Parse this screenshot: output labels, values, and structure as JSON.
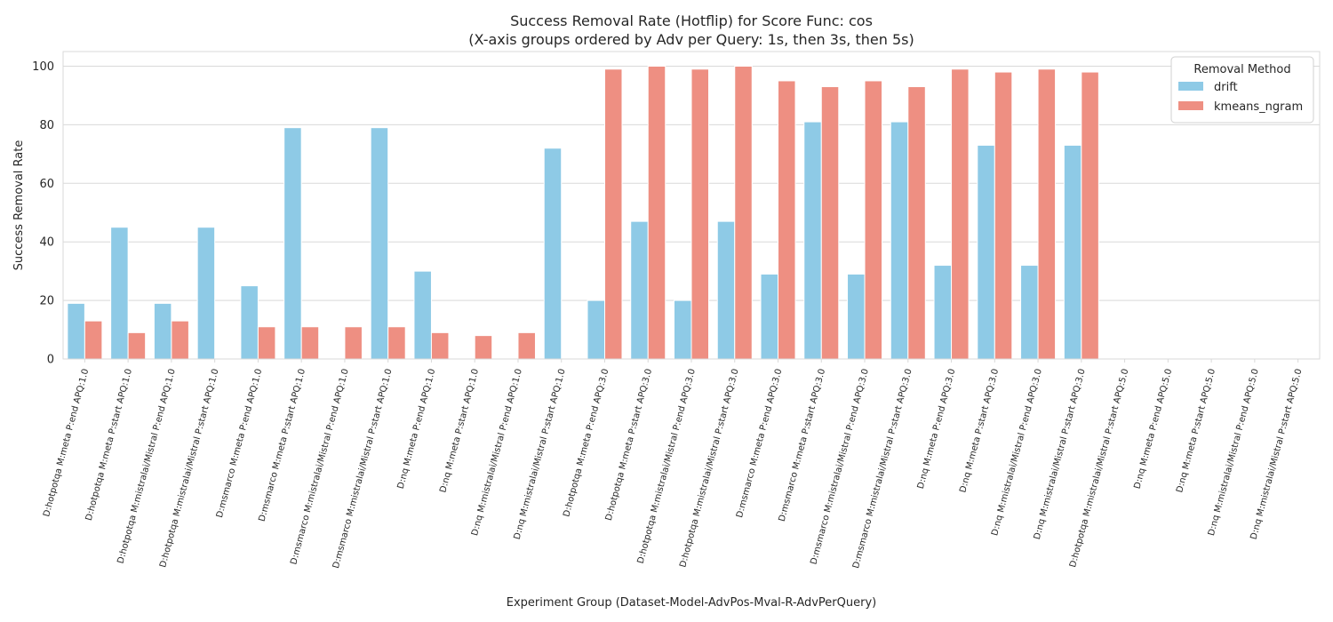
{
  "chart_data": {
    "type": "bar",
    "title": "Success Removal Rate (Hotflip) for Score Func: cos",
    "subtitle": "(X-axis groups ordered by Adv per Query: 1s, then 3s, then 5s)",
    "xlabel": "Experiment Group (Dataset-Model-AdvPos-Mval-R-AdvPerQuery)",
    "ylabel": "Success Removal Rate",
    "ylim": [
      0,
      105
    ],
    "yticks": [
      "0",
      "20",
      "40",
      "60",
      "80",
      "100"
    ],
    "grid": true,
    "legend": {
      "title": "Removal Method",
      "placement": "top-right"
    },
    "categories": [
      "D:hotpotqa M:meta P:end APQ:1.0",
      "D:hotpotqa M:meta P:start APQ:1.0",
      "D:hotpotqa M:mistralai/Mistral P:end APQ:1.0",
      "D:hotpotqa M:mistralai/Mistral P:start APQ:1.0",
      "D:msmarco M:meta P:end APQ:1.0",
      "D:msmarco M:meta P:start APQ:1.0",
      "D:msmarco M:mistralai/Mistral P:end APQ:1.0",
      "D:msmarco M:mistralai/Mistral P:start APQ:1.0",
      "D:nq M:meta P:end APQ:1.0",
      "D:nq M:meta P:start APQ:1.0",
      "D:nq M:mistralai/Mistral P:end APQ:1.0",
      "D:nq M:mistralai/Mistral P:start APQ:1.0",
      "D:hotpotqa M:meta P:end APQ:3.0",
      "D:hotpotqa M:meta P:start APQ:3.0",
      "D:hotpotqa M:mistralai/Mistral P:end APQ:3.0",
      "D:hotpotqa M:mistralai/Mistral P:start APQ:3.0",
      "D:msmarco M:meta P:end APQ:3.0",
      "D:msmarco M:meta P:start APQ:3.0",
      "D:msmarco M:mistralai/Mistral P:end APQ:3.0",
      "D:msmarco M:mistralai/Mistral P:start APQ:3.0",
      "D:nq M:meta P:end APQ:3.0",
      "D:nq M:meta P:start APQ:3.0",
      "D:nq M:mistralai/Mistral P:end APQ:3.0",
      "D:nq M:mistralai/Mistral P:start APQ:3.0",
      "D:hotpotqa M:mistralai/Mistral P:start APQ:5.0",
      "D:nq M:meta P:end APQ:5.0",
      "D:nq M:meta P:start APQ:5.0",
      "D:nq M:mistralai/Mistral P:end APQ:5.0",
      "D:nq M:mistralai/Mistral P:start APQ:5.0"
    ],
    "series": [
      {
        "name": "drift",
        "color": "#8ecae6",
        "values": [
          19,
          45,
          19,
          45,
          25,
          79,
          0,
          79,
          30,
          0,
          0,
          72,
          20,
          47,
          20,
          47,
          29,
          81,
          29,
          81,
          32,
          73,
          32,
          73,
          0,
          0,
          0,
          0,
          0
        ]
      },
      {
        "name": "kmeans_ngram",
        "color": "#ee8f82",
        "values": [
          13,
          9,
          13,
          0,
          11,
          11,
          11,
          11,
          9,
          8,
          9,
          0,
          99,
          100,
          99,
          100,
          95,
          93,
          95,
          93,
          99,
          98,
          99,
          98,
          0,
          0,
          0,
          0,
          0
        ]
      }
    ]
  }
}
